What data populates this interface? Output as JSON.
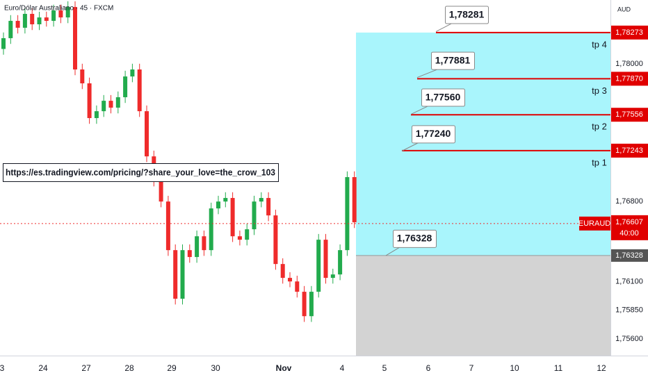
{
  "chart_data": {
    "type": "candlestick",
    "title": "Euro/Dólar Australiano · 45 · FXCM",
    "currency": "AUD",
    "link": "https://es.tradingview.com/pricing/?share_your_love=the_crow_103",
    "x_labels": [
      "3",
      "24",
      "27",
      "28",
      "29",
      "30",
      "Nov",
      "4",
      "5",
      "6",
      "7",
      "10",
      "11",
      "12"
    ],
    "up_color": "#22ab4d",
    "down_color": "#ef2b2b",
    "ylim": [
      1.75455,
      1.78557
    ],
    "yticks": [
      {
        "value": 1.78,
        "label": "1,78000"
      },
      {
        "value": 1.768,
        "label": "1,76800"
      },
      {
        "value": 1.761,
        "label": "1,76100"
      },
      {
        "value": 1.7585,
        "label": "1,75850"
      },
      {
        "value": 1.756,
        "label": "1,75600"
      }
    ],
    "open": [
      1.7813,
      1.78224,
      1.78375,
      1.78315,
      1.78436,
      1.78345,
      1.78405,
      1.78375,
      1.78466,
      1.78405,
      1.78496,
      1.77951,
      1.7783,
      1.77527,
      1.77587,
      1.77678,
      1.77618,
      1.77709,
      1.7789,
      1.77951,
      1.77587,
      1.77193,
      1.76981,
      1.76799,
      1.76375,
      1.75951,
      1.76375,
      1.76315,
      1.76496,
      1.76375,
      1.76739,
      1.76799,
      1.7683,
      1.76496,
      1.76466,
      1.76557,
      1.76799,
      1.7683,
      1.76678,
      1.76254,
      1.76133,
      1.76102,
      1.76012,
      1.75799,
      1.76012,
      1.76466,
      1.76133,
      1.76163,
      1.76375,
      1.77012
    ],
    "high": [
      1.78274,
      1.78425,
      1.78425,
      1.78486,
      1.78486,
      1.78455,
      1.78455,
      1.78516,
      1.78516,
      1.78546,
      1.78546,
      1.78001,
      1.7788,
      1.77637,
      1.77728,
      1.77728,
      1.77759,
      1.7794,
      1.78001,
      1.78001,
      1.77637,
      1.77243,
      1.77031,
      1.76849,
      1.76425,
      1.76425,
      1.76425,
      1.76546,
      1.76546,
      1.76789,
      1.76849,
      1.7688,
      1.7688,
      1.76546,
      1.76607,
      1.76849,
      1.7688,
      1.7688,
      1.76728,
      1.76304,
      1.76183,
      1.76152,
      1.76062,
      1.76062,
      1.76516,
      1.76516,
      1.76213,
      1.76425,
      1.77062,
      1.77062
    ],
    "low": [
      1.7808,
      1.78174,
      1.78265,
      1.78265,
      1.78295,
      1.78295,
      1.78325,
      1.78325,
      1.78355,
      1.78355,
      1.77901,
      1.7778,
      1.77477,
      1.77477,
      1.77537,
      1.77568,
      1.77568,
      1.77659,
      1.7784,
      1.77537,
      1.77143,
      1.76931,
      1.76749,
      1.76325,
      1.75901,
      1.75901,
      1.76265,
      1.76265,
      1.76325,
      1.76325,
      1.76689,
      1.76749,
      1.76446,
      1.76416,
      1.76416,
      1.76507,
      1.76749,
      1.76628,
      1.76204,
      1.76083,
      1.76052,
      1.75962,
      1.75749,
      1.75749,
      1.75962,
      1.76083,
      1.76083,
      1.76113,
      1.76325,
      1.76568
    ],
    "close": [
      1.78224,
      1.78375,
      1.78315,
      1.78436,
      1.78345,
      1.78405,
      1.78375,
      1.78466,
      1.78405,
      1.78496,
      1.77951,
      1.7783,
      1.77527,
      1.77587,
      1.77678,
      1.77618,
      1.77709,
      1.7789,
      1.77951,
      1.77587,
      1.77193,
      1.76981,
      1.76799,
      1.76375,
      1.75951,
      1.76375,
      1.76315,
      1.76496,
      1.76375,
      1.76739,
      1.76799,
      1.7683,
      1.76496,
      1.76466,
      1.76557,
      1.76799,
      1.7683,
      1.76678,
      1.76254,
      1.76133,
      1.76102,
      1.76012,
      1.75799,
      1.76012,
      1.76466,
      1.76133,
      1.76163,
      1.76375,
      1.77012,
      1.76618
    ],
    "levels": [
      {
        "name": "tp 4",
        "price": {
          "value": 1.78273,
          "label": "1,78273"
        },
        "callout": {
          "value": 1.78281,
          "label": "1,78281"
        }
      },
      {
        "name": "tp 3",
        "price": {
          "value": 1.7787,
          "label": "1,77870"
        },
        "callout": {
          "value": 1.77881,
          "label": "1,77881"
        }
      },
      {
        "name": "tp 2",
        "price": {
          "value": 1.77556,
          "label": "1,77556"
        },
        "callout": {
          "value": 1.7756,
          "label": "1,77560"
        }
      },
      {
        "name": "tp 1",
        "price": {
          "value": 1.77243,
          "label": "1,77243"
        },
        "callout": {
          "value": 1.7724,
          "label": "1,77240"
        }
      }
    ],
    "entry": {
      "value": 1.76328,
      "label": "1,76328"
    },
    "current": {
      "symbol": "EURAUD",
      "price": {
        "value": 1.76607,
        "label": "1,76607"
      },
      "countdown": "40:00"
    }
  }
}
